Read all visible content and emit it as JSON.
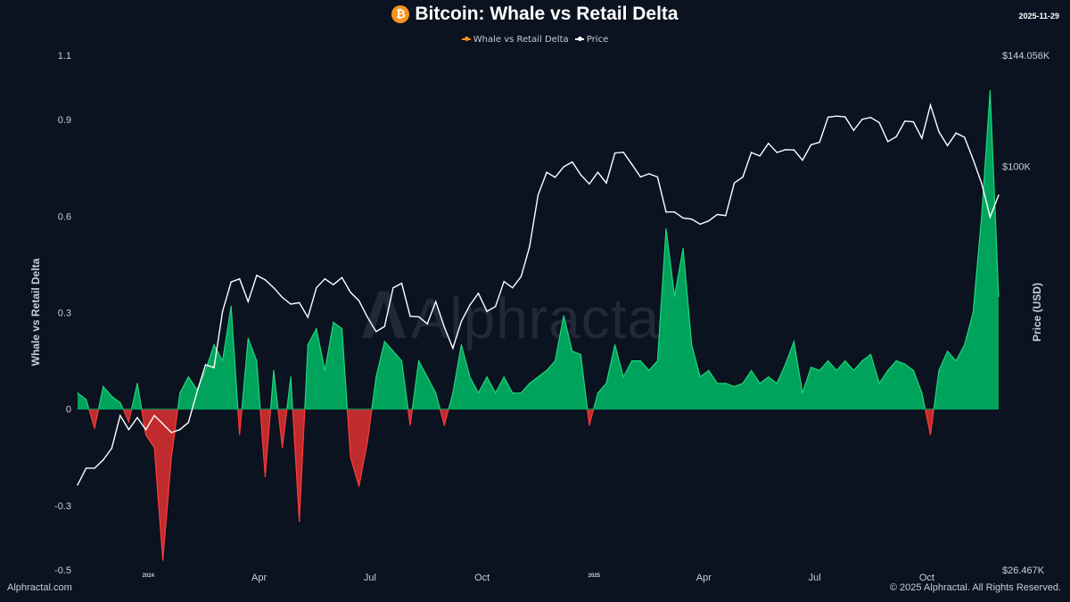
{
  "header": {
    "title": "Bitcoin: Whale vs Retail Delta",
    "date": "2025-11-29",
    "icon": "bitcoin-icon"
  },
  "footer": {
    "left": "Alphractal.com",
    "right": "© 2025 Alphractal. All Rights Reserved."
  },
  "watermark": "Alphractal",
  "colors": {
    "background": "#0b1220",
    "positive": "#00a35c",
    "positive_line": "#1fd67c",
    "negative": "#e03131",
    "price": "#ffffff",
    "delta_legend": "#f7931a"
  },
  "chart_data": {
    "type": "area",
    "title": "Bitcoin: Whale vs Retail Delta",
    "legend": {
      "position": "top",
      "entries": [
        "Whale vs Retail Delta",
        "Price"
      ]
    },
    "grid": false,
    "left_axis": {
      "label": "Whale vs Retail Delta",
      "ticks": [
        "1.1",
        "0.9",
        "0.6",
        "0.3",
        "0",
        "-0.3",
        "-0.5"
      ],
      "range": [
        -0.5,
        1.1
      ]
    },
    "right_axis": {
      "label": "Price (USD)",
      "scale": "log",
      "ticks": [
        "$144.056K",
        "$100K",
        "$26.467K"
      ],
      "tick_values": [
        144056,
        100000,
        26467
      ],
      "range": [
        26467,
        144056
      ]
    },
    "x_axis": {
      "range": [
        "2023-11-04",
        "2025-11-29"
      ],
      "ticks": [
        {
          "label": "2024",
          "date": "2024-01-01",
          "small": true
        },
        {
          "label": "Apr",
          "date": "2024-04-01"
        },
        {
          "label": "Jul",
          "date": "2024-07-01"
        },
        {
          "label": "Oct",
          "date": "2024-10-01"
        },
        {
          "label": "2025",
          "date": "2025-01-01",
          "small": true
        },
        {
          "label": "Apr",
          "date": "2025-04-01"
        },
        {
          "label": "Jul",
          "date": "2025-07-01"
        },
        {
          "label": "Oct",
          "date": "2025-10-01"
        }
      ]
    },
    "x": [
      "2023-11-04",
      "2023-11-11",
      "2023-11-18",
      "2023-11-25",
      "2023-12-02",
      "2023-12-09",
      "2023-12-16",
      "2023-12-23",
      "2023-12-30",
      "2024-01-06",
      "2024-01-13",
      "2024-01-20",
      "2024-01-27",
      "2024-02-03",
      "2024-02-10",
      "2024-02-17",
      "2024-02-24",
      "2024-03-02",
      "2024-03-09",
      "2024-03-16",
      "2024-03-23",
      "2024-03-30",
      "2024-04-06",
      "2024-04-13",
      "2024-04-20",
      "2024-04-27",
      "2024-05-04",
      "2024-05-11",
      "2024-05-18",
      "2024-05-25",
      "2024-06-01",
      "2024-06-08",
      "2024-06-15",
      "2024-06-22",
      "2024-06-29",
      "2024-07-06",
      "2024-07-13",
      "2024-07-20",
      "2024-07-27",
      "2024-08-03",
      "2024-08-10",
      "2024-08-17",
      "2024-08-24",
      "2024-08-31",
      "2024-09-07",
      "2024-09-14",
      "2024-09-21",
      "2024-09-28",
      "2024-10-05",
      "2024-10-12",
      "2024-10-19",
      "2024-10-26",
      "2024-11-02",
      "2024-11-09",
      "2024-11-16",
      "2024-11-23",
      "2024-11-30",
      "2024-12-07",
      "2024-12-14",
      "2024-12-21",
      "2024-12-28",
      "2025-01-04",
      "2025-01-11",
      "2025-01-18",
      "2025-01-25",
      "2025-02-01",
      "2025-02-08",
      "2025-02-15",
      "2025-02-22",
      "2025-03-01",
      "2025-03-08",
      "2025-03-15",
      "2025-03-22",
      "2025-03-29",
      "2025-04-05",
      "2025-04-12",
      "2025-04-19",
      "2025-04-26",
      "2025-05-03",
      "2025-05-10",
      "2025-05-17",
      "2025-05-24",
      "2025-05-31",
      "2025-06-07",
      "2025-06-14",
      "2025-06-21",
      "2025-06-28",
      "2025-07-05",
      "2025-07-12",
      "2025-07-19",
      "2025-07-26",
      "2025-08-02",
      "2025-08-09",
      "2025-08-16",
      "2025-08-23",
      "2025-08-30",
      "2025-09-06",
      "2025-09-13",
      "2025-09-20",
      "2025-09-27",
      "2025-10-04",
      "2025-10-11",
      "2025-10-18",
      "2025-10-25",
      "2025-11-01",
      "2025-11-08",
      "2025-11-15",
      "2025-11-22",
      "2025-11-29"
    ],
    "series": [
      {
        "name": "Whale vs Retail Delta",
        "axis": "left",
        "values": [
          0.05,
          0.03,
          -0.06,
          0.07,
          0.04,
          0.02,
          -0.04,
          0.08,
          -0.08,
          -0.12,
          -0.47,
          -0.15,
          0.05,
          0.1,
          0.06,
          0.12,
          0.2,
          0.15,
          0.32,
          -0.08,
          0.22,
          0.15,
          -0.21,
          0.12,
          -0.12,
          0.1,
          -0.35,
          0.2,
          0.25,
          0.12,
          0.27,
          0.25,
          -0.15,
          -0.24,
          -0.1,
          0.1,
          0.21,
          0.18,
          0.15,
          -0.05,
          0.15,
          0.1,
          0.05,
          -0.05,
          0.05,
          0.2,
          0.1,
          0.05,
          0.1,
          0.05,
          0.1,
          0.05,
          0.05,
          0.08,
          0.1,
          0.12,
          0.15,
          0.29,
          0.18,
          0.17,
          -0.05,
          0.05,
          0.08,
          0.2,
          0.1,
          0.15,
          0.15,
          0.12,
          0.15,
          0.56,
          0.35,
          0.5,
          0.2,
          0.1,
          0.12,
          0.08,
          0.08,
          0.07,
          0.08,
          0.12,
          0.08,
          0.1,
          0.08,
          0.14,
          0.21,
          0.05,
          0.13,
          0.12,
          0.15,
          0.12,
          0.15,
          0.12,
          0.15,
          0.17,
          0.08,
          0.12,
          0.15,
          0.14,
          0.12,
          0.05,
          -0.08,
          0.12,
          0.18,
          0.15,
          0.2,
          0.3,
          0.6,
          0.99,
          0.35
        ]
      },
      {
        "name": "Price",
        "axis": "right",
        "unit": "USD thousands",
        "values": [
          35,
          37,
          37,
          38,
          39.5,
          44,
          42,
          43.7,
          42,
          44,
          42.8,
          41.6,
          42,
          43,
          47.5,
          52,
          51.5,
          62,
          68.3,
          69,
          64,
          69.8,
          68.8,
          67,
          64.9,
          63.5,
          63.8,
          60.8,
          67,
          69,
          67.7,
          69.3,
          66,
          64.2,
          60.8,
          58,
          59,
          67,
          68,
          61,
          60.9,
          59.5,
          64,
          58.9,
          54.9,
          60,
          63.3,
          65.8,
          62,
          63,
          68.4,
          67,
          69.5,
          76.7,
          91,
          98,
          96.4,
          99.8,
          101.4,
          97.2,
          94.3,
          98,
          94.6,
          104.4,
          104.7,
          100.6,
          96.5,
          97.5,
          96.5,
          86,
          86,
          84.3,
          84,
          82.6,
          83.5,
          85.3,
          85,
          94.6,
          96.5,
          104.6,
          103.4,
          107.8,
          104.6,
          105.6,
          105.5,
          102,
          107.3,
          108.2,
          117.5,
          117.9,
          117.6,
          112.5,
          116.7,
          117.4,
          115.4,
          108.4,
          110.2,
          116,
          115.7,
          109.6,
          122.3,
          112,
          107,
          111.5,
          110,
          102.3,
          94.5,
          84.6,
          90.9
        ]
      }
    ]
  }
}
